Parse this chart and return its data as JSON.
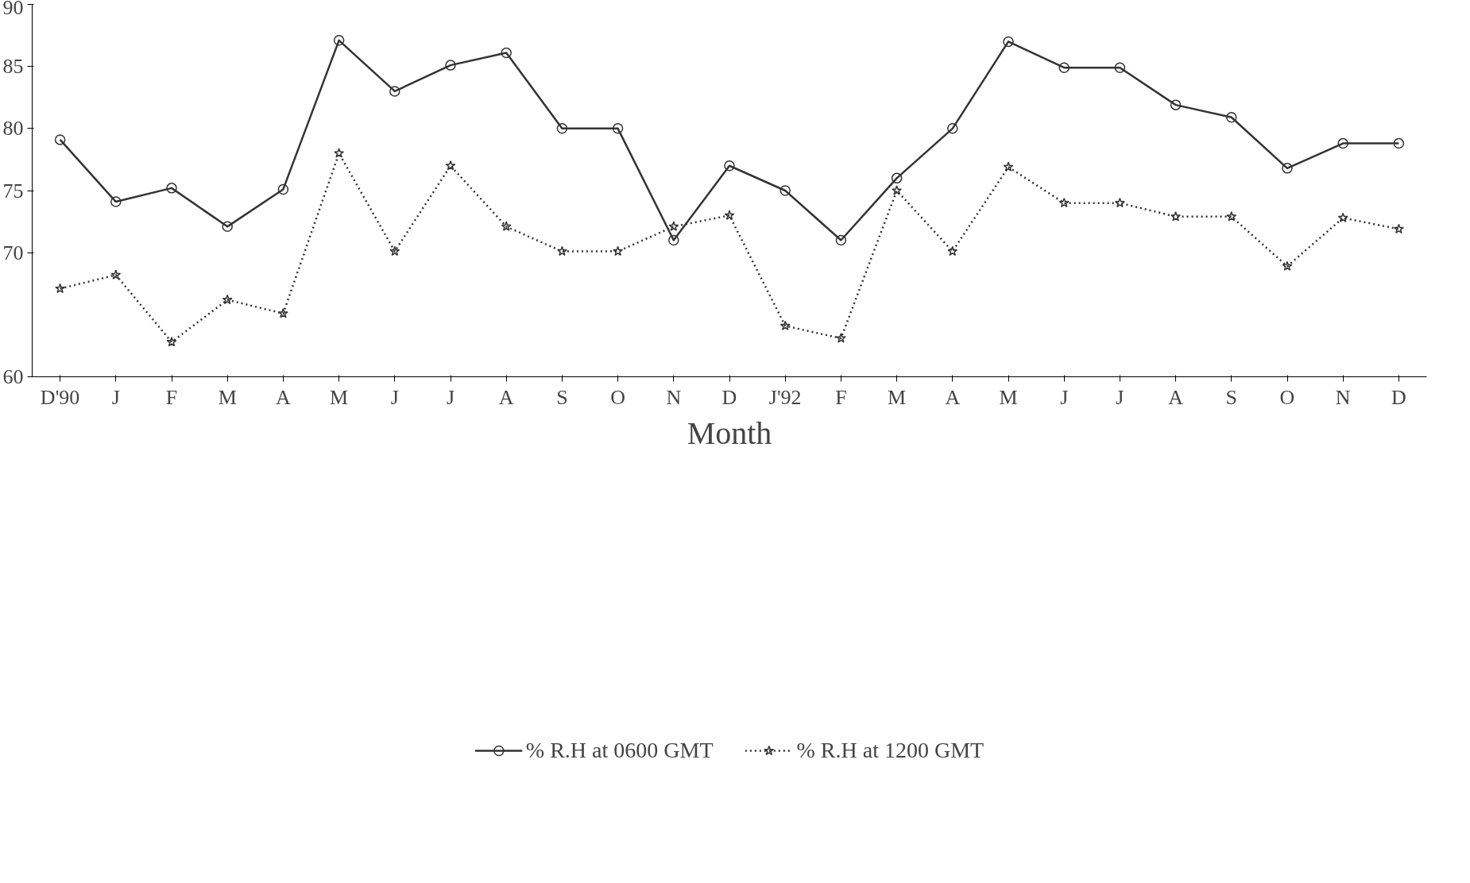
{
  "chart_data": {
    "type": "line",
    "xlabel": "Month",
    "categories": [
      "D'90",
      "J",
      "F",
      "M",
      "A",
      "M",
      "J",
      "J",
      "A",
      "S",
      "O",
      "N",
      "D",
      "J'92",
      "F",
      "M",
      "A",
      "M",
      "J",
      "J",
      "A",
      "S",
      "O",
      "N",
      "D"
    ],
    "ylim": [
      60,
      90
    ],
    "yticks": [
      60,
      70,
      75,
      80,
      85,
      90
    ],
    "grid": false,
    "legend": "bottom",
    "series": [
      {
        "name": "% R.H at 0600 GMT",
        "color": "#333333",
        "marker": "circle",
        "line_style": "solid",
        "values": [
          79.1,
          74.1,
          75.2,
          72.1,
          75.1,
          87.1,
          83.0,
          85.1,
          86.1,
          80.0,
          80.0,
          71.0,
          77.0,
          75.0,
          71.0,
          76.0,
          80.0,
          87.0,
          84.9,
          84.9,
          81.9,
          80.9,
          76.8,
          78.8,
          78.8
        ]
      },
      {
        "name": "% R.H at 1200 GMT",
        "color": "#333333",
        "marker": "star",
        "line_style": "dotted",
        "values": [
          67.1,
          68.2,
          62.8,
          66.2,
          65.1,
          78.0,
          70.1,
          77.0,
          72.1,
          70.1,
          70.1,
          72.1,
          73.0,
          64.1,
          63.1,
          75.0,
          70.1,
          76.9,
          74.0,
          74.0,
          72.9,
          72.9,
          68.9,
          72.8,
          71.9
        ]
      }
    ]
  }
}
